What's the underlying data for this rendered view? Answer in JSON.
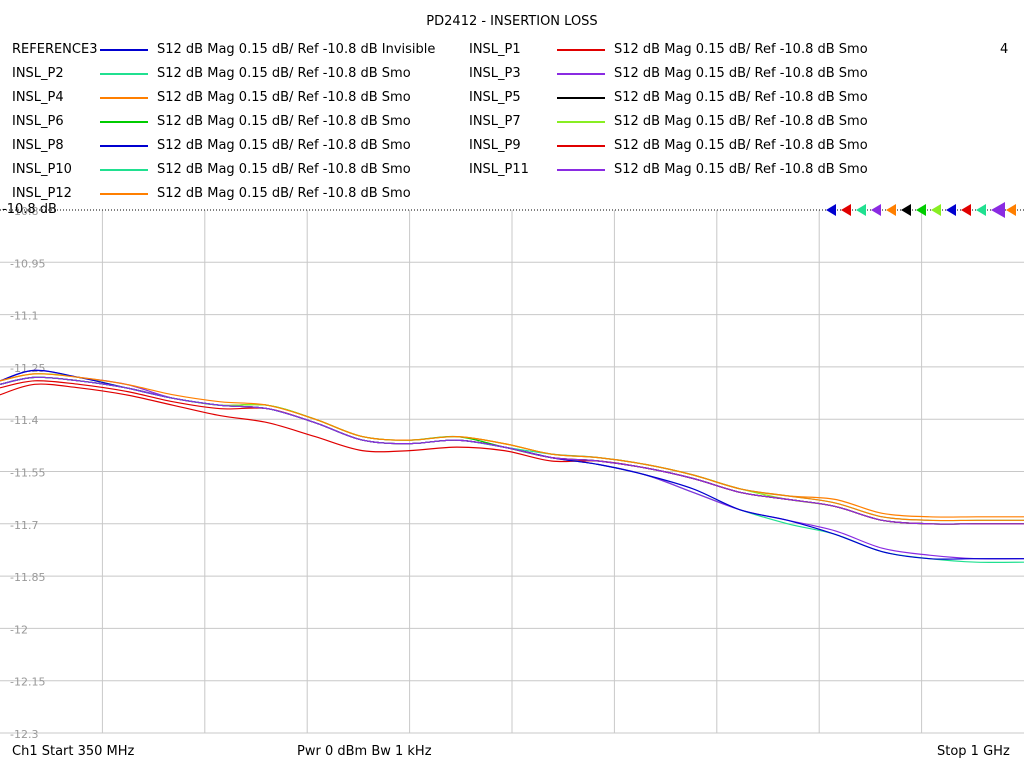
{
  "chart_data": {
    "type": "line",
    "title": "PD2412 - INSERTION LOSS",
    "channel_number": "4",
    "ref_label": "-10.8 dB",
    "xlabel": "",
    "ylabel": "",
    "x_range_mhz": [
      350,
      1000
    ],
    "ylim": [
      -12.3,
      -10.8
    ],
    "y_ticks": [
      -10.8,
      -10.95,
      -11.1,
      -11.25,
      -11.4,
      -11.55,
      -11.7,
      -11.85,
      -12,
      -12.15,
      -12.3
    ],
    "y_tick_labels": [
      "-10.8",
      "-10.95",
      "-11.1",
      "-11.25",
      "-11.4",
      "-11.55",
      "-11.7",
      "-11.85",
      "-12",
      "-12.15",
      "-12.3"
    ],
    "grid": true,
    "x": [
      350,
      372,
      400,
      430,
      460,
      490,
      520,
      550,
      580,
      610,
      640,
      670,
      700,
      730,
      760,
      790,
      820,
      850,
      880,
      910,
      940,
      970,
      1000
    ],
    "base_trace": [
      -11.3,
      -11.28,
      -11.29,
      -11.31,
      -11.34,
      -11.36,
      -11.37,
      -11.41,
      -11.46,
      -11.47,
      -11.46,
      -11.48,
      -11.51,
      -11.52,
      -11.54,
      -11.57,
      -11.61,
      -11.63,
      -11.65,
      -11.69,
      -11.7,
      -11.7,
      -11.7
    ],
    "series": [
      {
        "name": "REFERENCE3",
        "desc": "S12  dB Mag  0.15 dB/ Ref -10.8 dB  Invisible",
        "color": "#0000d0",
        "offsets": [
          0.0,
          0.0,
          0.0,
          0.0,
          0.0,
          0.0,
          0.0,
          0.0,
          0.0,
          0.0,
          0.0,
          0.0,
          0.0,
          0.0,
          0.0,
          0.0,
          0.0,
          0.0,
          0.0,
          0.0,
          0.0,
          0.0,
          0.0
        ],
        "visible": false
      },
      {
        "name": "INSL_P1",
        "desc": "S12  dB Mag  0.15 dB/ Ref -10.8 dB  Smo",
        "color": "#e00000",
        "offsets": [
          -0.03,
          -0.02,
          -0.02,
          -0.02,
          -0.02,
          -0.03,
          -0.04,
          -0.04,
          -0.03,
          -0.02,
          -0.02,
          -0.01,
          -0.01,
          0.0,
          0.0,
          0.0,
          0.0,
          0.0,
          0.0,
          0.0,
          0.0,
          0.0,
          0.0
        ],
        "visible": true
      },
      {
        "name": "INSL_P2",
        "desc": "S12  dB Mag  0.15 dB/ Ref -10.8 dB  Smo",
        "color": "#20e090",
        "offsets": [
          0.0,
          0.0,
          0.0,
          0.0,
          0.0,
          0.0,
          0.0,
          0.0,
          0.0,
          0.0,
          0.0,
          0.0,
          0.0,
          -0.01,
          -0.02,
          -0.04,
          -0.05,
          -0.07,
          -0.08,
          -0.09,
          -0.1,
          -0.11,
          -0.11
        ],
        "visible": true
      },
      {
        "name": "INSL_P3",
        "desc": "S12  dB Mag  0.15 dB/ Ref -10.8 dB  Smo",
        "color": "#8a2be2",
        "offsets": [
          0.01,
          0.02,
          0.01,
          0.01,
          0.0,
          0.0,
          0.0,
          0.0,
          0.0,
          0.0,
          0.0,
          0.0,
          0.0,
          -0.01,
          -0.02,
          -0.04,
          -0.05,
          -0.06,
          -0.07,
          -0.08,
          -0.09,
          -0.1,
          -0.1
        ],
        "visible": true
      },
      {
        "name": "INSL_P4",
        "desc": "S12  dB Mag  0.15 dB/ Ref -10.8 dB  Smo",
        "color": "#ff7f00",
        "offsets": [
          0.0,
          0.0,
          0.0,
          0.0,
          0.0,
          0.0,
          0.01,
          0.01,
          0.01,
          0.01,
          0.01,
          0.01,
          0.01,
          0.01,
          0.01,
          0.01,
          0.01,
          0.01,
          0.02,
          0.02,
          0.02,
          0.02,
          0.02
        ],
        "visible": true
      },
      {
        "name": "INSL_P5",
        "desc": "S12  dB Mag  0.15 dB/ Ref -10.8 dB  Smo",
        "color": "#000000",
        "offsets": [
          0.0,
          0.0,
          0.0,
          0.0,
          0.0,
          0.0,
          0.0,
          0.0,
          0.0,
          0.0,
          0.0,
          0.0,
          0.0,
          0.0,
          0.0,
          0.0,
          0.0,
          0.0,
          0.0,
          0.0,
          0.0,
          0.0,
          0.0
        ],
        "visible": true
      },
      {
        "name": "INSL_P6",
        "desc": "S12  dB Mag  0.15 dB/ Ref -10.8 dB  Smo",
        "color": "#00cc00",
        "offsets": [
          0.0,
          0.0,
          0.0,
          0.0,
          0.0,
          0.0,
          0.01,
          0.01,
          0.01,
          0.01,
          0.01,
          0.0,
          0.0,
          0.0,
          0.0,
          0.0,
          0.0,
          0.0,
          0.0,
          0.0,
          0.0,
          0.0,
          0.0
        ],
        "visible": true
      },
      {
        "name": "INSL_P7",
        "desc": "S12  dB Mag  0.15 dB/ Ref -10.8 dB  Smo",
        "color": "#88ee22",
        "offsets": [
          0.01,
          0.01,
          0.01,
          0.0,
          0.0,
          0.0,
          0.01,
          0.01,
          0.01,
          0.01,
          0.01,
          0.01,
          0.01,
          0.01,
          0.01,
          0.01,
          0.01,
          0.0,
          0.0,
          0.0,
          0.0,
          0.0,
          0.0
        ],
        "visible": true
      },
      {
        "name": "INSL_P8",
        "desc": "S12  dB Mag  0.15 dB/ Ref -10.8 dB  Smo",
        "color": "#0000d0",
        "offsets": [
          0.01,
          0.02,
          0.01,
          0.0,
          0.0,
          0.0,
          0.0,
          0.0,
          0.0,
          0.0,
          0.0,
          0.0,
          0.0,
          -0.01,
          -0.02,
          -0.03,
          -0.05,
          -0.06,
          -0.08,
          -0.09,
          -0.1,
          -0.1,
          -0.1
        ],
        "visible": true
      },
      {
        "name": "INSL_P9",
        "desc": "S12  dB Mag  0.15 dB/ Ref -10.8 dB  Smo",
        "color": "#e00000",
        "offsets": [
          -0.01,
          -0.01,
          -0.01,
          -0.01,
          -0.01,
          -0.01,
          0.0,
          0.0,
          0.0,
          0.0,
          0.0,
          0.0,
          0.0,
          0.0,
          0.0,
          0.0,
          0.0,
          0.0,
          0.0,
          0.0,
          0.0,
          0.0,
          0.0
        ],
        "visible": true
      },
      {
        "name": "INSL_P10",
        "desc": "S12  dB Mag  0.15 dB/ Ref -10.8 dB  Smo",
        "color": "#20e090",
        "offsets": [
          0.0,
          0.0,
          0.0,
          0.0,
          0.0,
          0.0,
          0.0,
          0.0,
          0.0,
          0.0,
          0.0,
          0.0,
          0.01,
          0.01,
          0.01,
          0.01,
          0.01,
          0.01,
          0.01,
          0.01,
          0.01,
          0.01,
          0.01
        ],
        "visible": true
      },
      {
        "name": "INSL_P11",
        "desc": "S12  dB Mag  0.15 dB/ Ref -10.8 dB  Smo",
        "color": "#8a2be2",
        "offsets": [
          0.0,
          0.0,
          0.0,
          0.0,
          0.0,
          0.0,
          0.0,
          0.0,
          0.0,
          0.0,
          0.0,
          0.0,
          0.0,
          0.0,
          0.0,
          0.0,
          0.0,
          0.0,
          0.0,
          0.0,
          0.0,
          0.0,
          0.0
        ],
        "visible": true
      },
      {
        "name": "INSL_P12",
        "desc": "S12  dB Mag  0.15 dB/ Ref -10.8 dB  Smo",
        "color": "#ff7f00",
        "offsets": [
          0.01,
          0.01,
          0.01,
          0.01,
          0.01,
          0.01,
          0.01,
          0.01,
          0.01,
          0.01,
          0.01,
          0.01,
          0.01,
          0.01,
          0.01,
          0.01,
          0.01,
          0.01,
          0.01,
          0.01,
          0.01,
          0.01,
          0.01
        ],
        "visible": true
      }
    ],
    "marker_colors": [
      "#0000d0",
      "#e00000",
      "#20e090",
      "#8a2be2",
      "#ff7f00",
      "#000000",
      "#00cc00",
      "#88ee22",
      "#0000d0",
      "#e00000",
      "#20e090",
      "#8a2be2",
      "#ff7f00"
    ]
  },
  "footer": {
    "left": "Ch1  Start  350 MHz",
    "middle": "Pwr  0 dBm  Bw  1 kHz",
    "right": "Stop  1 GHz"
  }
}
